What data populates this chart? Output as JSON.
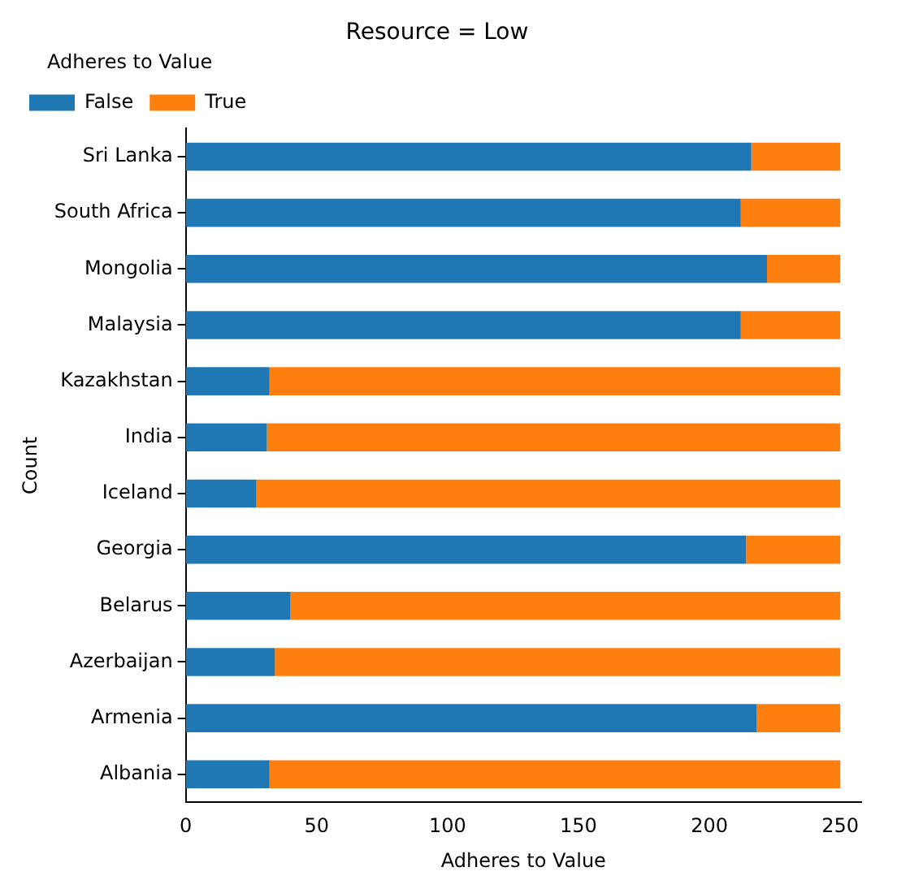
{
  "chart_data": {
    "type": "bar",
    "orientation": "horizontal",
    "stacked": true,
    "title": "Resource = Low",
    "xlabel": "Adheres to Value",
    "ylabel": "Count",
    "legend_title": "Adheres to Value",
    "legend": "top left",
    "grid": false,
    "categories": [
      "Sri Lanka",
      "South Africa",
      "Mongolia",
      "Malaysia",
      "Kazakhstan",
      "India",
      "Iceland",
      "Georgia",
      "Belarus",
      "Azerbaijan",
      "Armenia",
      "Albania"
    ],
    "xlim": [
      0,
      258
    ],
    "xticks": [
      0,
      50,
      100,
      150,
      200,
      250
    ],
    "series": [
      {
        "name": "False",
        "color": "#1f77b4",
        "values": [
          216,
          212,
          222,
          212,
          32,
          31,
          27,
          214,
          40,
          34,
          218,
          32
        ]
      },
      {
        "name": "True",
        "color": "#ff7f0e",
        "values": [
          34,
          38,
          28,
          38,
          218,
          219,
          223,
          36,
          210,
          216,
          32,
          218
        ]
      }
    ]
  }
}
